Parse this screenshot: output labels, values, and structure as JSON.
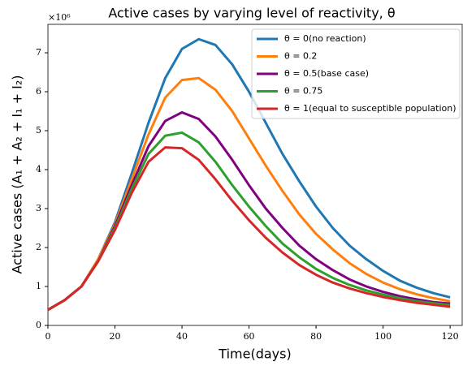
{
  "chart_data": {
    "type": "line",
    "title": "Active cases by varying level of reactivity, θ",
    "x_label": "Time(days)",
    "y_label": "Active cases (A₁ + A₂ + I₁ + I₂)",
    "y_multiplier": "×10⁶",
    "x": [
      0,
      5,
      10,
      15,
      20,
      25,
      30,
      35,
      40,
      45,
      50,
      55,
      60,
      65,
      70,
      75,
      80,
      85,
      90,
      95,
      100,
      105,
      110,
      115,
      120
    ],
    "series": [
      {
        "name": "θ = 0(no reaction)",
        "color": "#1f77b4",
        "values": [
          0.4,
          0.65,
          1.0,
          1.7,
          2.65,
          3.9,
          5.2,
          6.35,
          7.1,
          7.35,
          7.2,
          6.7,
          6.0,
          5.2,
          4.4,
          3.7,
          3.05,
          2.5,
          2.05,
          1.7,
          1.4,
          1.15,
          0.97,
          0.83,
          0.72
        ]
      },
      {
        "name": "θ = 0.2",
        "color": "#ff7f0e",
        "values": [
          0.4,
          0.65,
          1.0,
          1.7,
          2.6,
          3.75,
          4.9,
          5.85,
          6.3,
          6.35,
          6.05,
          5.5,
          4.8,
          4.1,
          3.45,
          2.85,
          2.35,
          1.95,
          1.6,
          1.32,
          1.1,
          0.93,
          0.8,
          0.7,
          0.62
        ]
      },
      {
        "name": "θ = 0.5(base case)",
        "color": "#800080",
        "values": [
          0.4,
          0.65,
          1.0,
          1.65,
          2.55,
          3.6,
          4.6,
          5.25,
          5.47,
          5.3,
          4.85,
          4.25,
          3.6,
          3.0,
          2.5,
          2.05,
          1.7,
          1.42,
          1.18,
          1.0,
          0.86,
          0.75,
          0.67,
          0.6,
          0.56
        ]
      },
      {
        "name": "θ = 0.75",
        "color": "#2ca02c",
        "values": [
          0.4,
          0.65,
          1.0,
          1.65,
          2.5,
          3.5,
          4.4,
          4.87,
          4.95,
          4.7,
          4.2,
          3.6,
          3.05,
          2.55,
          2.1,
          1.75,
          1.45,
          1.22,
          1.04,
          0.9,
          0.79,
          0.7,
          0.62,
          0.57,
          0.52
        ]
      },
      {
        "name": "θ = 1(equal to susceptible population)",
        "color": "#d62728",
        "values": [
          0.4,
          0.65,
          1.0,
          1.65,
          2.45,
          3.4,
          4.2,
          4.57,
          4.55,
          4.25,
          3.75,
          3.2,
          2.7,
          2.25,
          1.87,
          1.55,
          1.3,
          1.1,
          0.95,
          0.83,
          0.73,
          0.65,
          0.58,
          0.53,
          0.48
        ]
      }
    ],
    "xlim": [
      0,
      123.6
    ],
    "xticks": [
      0,
      20,
      40,
      60,
      80,
      100,
      120
    ],
    "ylim": [
      0,
      7.73
    ],
    "yticks": [
      0,
      1,
      2,
      3,
      4,
      5,
      6,
      7
    ],
    "legend": "upper right"
  }
}
